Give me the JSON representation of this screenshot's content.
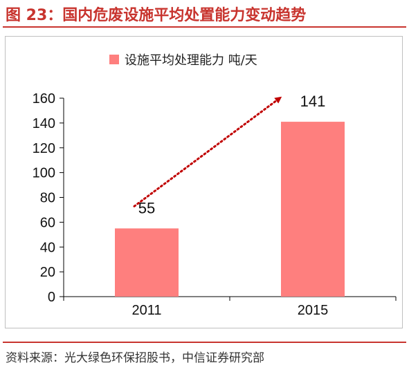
{
  "figure": {
    "title": "图 23：国内危废设施平均处置能力变动趋势",
    "source": "资料来源：光大绿色环保招股书，中信证券研究部"
  },
  "colors": {
    "accent": "#c8342e",
    "bar": "#fe7f7e",
    "arrow": "#c00000",
    "axis": "#000000"
  },
  "chart_data": {
    "type": "bar",
    "categories": [
      "2011",
      "2015"
    ],
    "series": [
      {
        "name": "设施平均处理能力 吨/天",
        "values": [
          55,
          141
        ]
      }
    ],
    "data_labels": [
      "55",
      "141"
    ],
    "title": "",
    "xlabel": "",
    "ylabel": "",
    "ylim": [
      0,
      160
    ],
    "y_ticks": [
      0,
      20,
      40,
      60,
      80,
      100,
      120,
      140,
      160
    ],
    "grid": false,
    "legend": "top-center",
    "annotation": "dotted arrow from 2011 to 2015"
  }
}
